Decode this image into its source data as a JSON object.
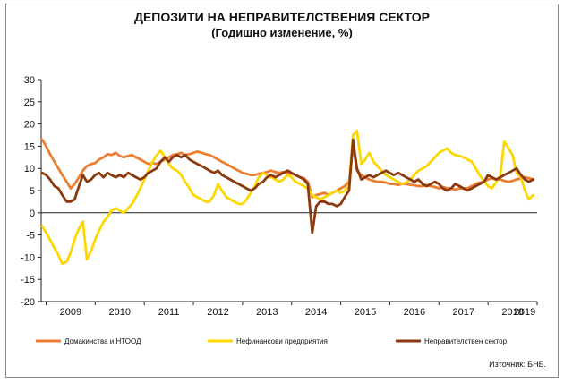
{
  "chart_data": {
    "type": "line",
    "title": "ДЕПОЗИТИ НА НЕПРАВИТЕЛСТВЕНИЯ СЕКТОР",
    "subtitle": "(Годишно изменение, %)",
    "source": "Източник: БНБ.",
    "xlabel": "",
    "ylabel": "",
    "ylim": [
      -20,
      30
    ],
    "yticks": [
      -20,
      -15,
      -10,
      -5,
      0,
      5,
      10,
      15,
      20,
      25,
      30
    ],
    "xlim": [
      2008.9,
      2019.0
    ],
    "xtick_labels": [
      "2009",
      "2010",
      "2011",
      "2012",
      "2013",
      "2014",
      "2015",
      "2016",
      "2017",
      "2018",
      "2019"
    ],
    "legend_position": "bottom",
    "grid": false,
    "series": [
      {
        "name": "Домакинства и НТООД",
        "color": "#ED7D31",
        "x": [
          2008.92,
          2009.0,
          2009.08,
          2009.17,
          2009.25,
          2009.33,
          2009.42,
          2009.5,
          2009.58,
          2009.67,
          2009.75,
          2009.83,
          2009.92,
          2010.0,
          2010.08,
          2010.17,
          2010.25,
          2010.33,
          2010.42,
          2010.5,
          2010.58,
          2010.67,
          2010.75,
          2010.83,
          2010.92,
          2011.0,
          2011.08,
          2011.17,
          2011.25,
          2011.33,
          2011.42,
          2011.5,
          2011.58,
          2011.67,
          2011.75,
          2011.83,
          2011.92,
          2012.0,
          2012.08,
          2012.17,
          2012.25,
          2012.33,
          2012.42,
          2012.5,
          2012.58,
          2012.67,
          2012.75,
          2012.83,
          2012.92,
          2013.0,
          2013.08,
          2013.17,
          2013.25,
          2013.33,
          2013.42,
          2013.5,
          2013.58,
          2013.67,
          2013.75,
          2013.83,
          2013.92,
          2014.0,
          2014.08,
          2014.17,
          2014.25,
          2014.33,
          2014.42,
          2014.5,
          2014.58,
          2014.67,
          2014.75,
          2014.83,
          2014.92,
          2015.0,
          2015.08,
          2015.17,
          2015.25,
          2015.33,
          2015.42,
          2015.5,
          2015.58,
          2015.67,
          2015.75,
          2015.83,
          2015.92,
          2016.0,
          2016.08,
          2016.17,
          2016.25,
          2016.33,
          2016.42,
          2016.5,
          2016.58,
          2016.67,
          2016.75,
          2016.83,
          2016.92,
          2017.0,
          2017.08,
          2017.17,
          2017.25,
          2017.33,
          2017.42,
          2017.5,
          2017.58,
          2017.67,
          2017.75,
          2017.83,
          2017.92,
          2018.0,
          2018.08,
          2018.17,
          2018.25,
          2018.33,
          2018.42,
          2018.5,
          2018.58,
          2018.67,
          2018.75,
          2018.83,
          2018.92
        ],
        "values": [
          16.5,
          15.0,
          13.2,
          11.5,
          10.0,
          8.5,
          7.0,
          5.5,
          6.5,
          8.0,
          9.5,
          10.5,
          11.0,
          11.2,
          12.0,
          12.5,
          13.2,
          13.0,
          13.5,
          12.8,
          12.5,
          12.8,
          13.0,
          12.5,
          12.0,
          11.5,
          11.0,
          11.2,
          11.0,
          11.5,
          12.0,
          12.5,
          13.0,
          13.2,
          13.5,
          13.0,
          13.2,
          13.5,
          13.8,
          13.5,
          13.2,
          13.0,
          12.5,
          12.0,
          11.5,
          11.0,
          10.5,
          10.0,
          9.5,
          9.0,
          8.8,
          8.5,
          8.5,
          8.8,
          9.0,
          9.2,
          9.5,
          9.2,
          9.0,
          9.2,
          9.0,
          8.8,
          8.5,
          8.0,
          7.8,
          7.0,
          3.5,
          4.0,
          4.2,
          4.5,
          4.0,
          4.5,
          5.0,
          5.5,
          6.0,
          7.0,
          15.0,
          9.5,
          8.5,
          8.0,
          7.5,
          7.2,
          7.0,
          7.0,
          6.8,
          6.5,
          6.5,
          6.3,
          6.5,
          6.5,
          6.3,
          6.2,
          6.0,
          6.0,
          6.2,
          6.0,
          5.8,
          5.5,
          5.8,
          5.5,
          5.5,
          5.2,
          5.5,
          5.5,
          5.5,
          6.0,
          6.5,
          6.8,
          7.0,
          7.5,
          7.8,
          7.5,
          7.5,
          7.2,
          7.0,
          7.2,
          7.5,
          7.8,
          8.0,
          7.8,
          7.5
        ]
      },
      {
        "name": "Нефинансови предприятия",
        "color": "#FFD700",
        "x": [
          2008.92,
          2009.0,
          2009.08,
          2009.17,
          2009.25,
          2009.33,
          2009.42,
          2009.5,
          2009.58,
          2009.67,
          2009.75,
          2009.83,
          2009.92,
          2010.0,
          2010.08,
          2010.17,
          2010.25,
          2010.33,
          2010.42,
          2010.5,
          2010.58,
          2010.67,
          2010.75,
          2010.83,
          2010.92,
          2011.0,
          2011.08,
          2011.17,
          2011.25,
          2011.33,
          2011.42,
          2011.5,
          2011.58,
          2011.67,
          2011.75,
          2011.83,
          2011.92,
          2012.0,
          2012.08,
          2012.17,
          2012.25,
          2012.33,
          2012.42,
          2012.5,
          2012.58,
          2012.67,
          2012.75,
          2012.83,
          2012.92,
          2013.0,
          2013.08,
          2013.17,
          2013.25,
          2013.33,
          2013.42,
          2013.5,
          2013.58,
          2013.67,
          2013.75,
          2013.83,
          2013.92,
          2014.0,
          2014.08,
          2014.17,
          2014.25,
          2014.33,
          2014.42,
          2014.5,
          2014.58,
          2014.67,
          2014.75,
          2014.83,
          2014.92,
          2015.0,
          2015.08,
          2015.17,
          2015.25,
          2015.33,
          2015.42,
          2015.5,
          2015.58,
          2015.67,
          2015.75,
          2015.83,
          2015.92,
          2016.0,
          2016.08,
          2016.17,
          2016.25,
          2016.33,
          2016.42,
          2016.5,
          2016.58,
          2016.67,
          2016.75,
          2016.83,
          2016.92,
          2017.0,
          2017.08,
          2017.17,
          2017.25,
          2017.33,
          2017.42,
          2017.5,
          2017.58,
          2017.67,
          2017.75,
          2017.83,
          2017.92,
          2018.0,
          2018.08,
          2018.17,
          2018.25,
          2018.33,
          2018.42,
          2018.5,
          2018.58,
          2018.67,
          2018.75,
          2018.83,
          2018.92
        ],
        "values": [
          -3.0,
          -4.5,
          -6.0,
          -8.0,
          -9.5,
          -11.5,
          -11.0,
          -9.0,
          -6.0,
          -3.5,
          -2.0,
          -10.5,
          -8.5,
          -6.0,
          -4.0,
          -2.0,
          -1.0,
          0.5,
          1.0,
          0.5,
          0.0,
          1.0,
          2.0,
          3.5,
          5.5,
          7.5,
          9.5,
          11.5,
          13.0,
          14.0,
          12.5,
          11.0,
          10.0,
          9.5,
          8.5,
          7.0,
          5.5,
          4.0,
          3.5,
          3.0,
          2.5,
          2.5,
          4.0,
          6.5,
          5.0,
          3.5,
          3.0,
          2.5,
          2.0,
          2.0,
          3.0,
          4.5,
          6.0,
          8.0,
          9.0,
          8.5,
          8.0,
          7.5,
          7.0,
          7.5,
          8.5,
          8.0,
          7.0,
          6.5,
          6.0,
          5.5,
          4.0,
          3.5,
          3.0,
          3.5,
          4.0,
          4.5,
          5.0,
          4.5,
          5.0,
          6.0,
          17.5,
          18.5,
          11.0,
          12.0,
          13.5,
          11.5,
          10.5,
          9.5,
          8.5,
          8.0,
          7.5,
          7.0,
          6.5,
          6.8,
          7.5,
          8.5,
          9.5,
          10.0,
          10.5,
          11.5,
          12.5,
          13.5,
          14.0,
          14.5,
          13.5,
          13.0,
          12.8,
          12.5,
          12.0,
          11.5,
          10.0,
          8.5,
          7.0,
          6.0,
          5.5,
          7.0,
          8.5,
          16.0,
          14.5,
          13.0,
          9.0,
          8.0,
          5.0,
          3.0,
          4.0
        ]
      },
      {
        "name": "Неправителствен сектор",
        "color": "#8B3A0F",
        "x": [
          2008.92,
          2009.0,
          2009.08,
          2009.17,
          2009.25,
          2009.33,
          2009.42,
          2009.5,
          2009.58,
          2009.67,
          2009.75,
          2009.83,
          2009.92,
          2010.0,
          2010.08,
          2010.17,
          2010.25,
          2010.33,
          2010.42,
          2010.5,
          2010.58,
          2010.67,
          2010.75,
          2010.83,
          2010.92,
          2011.0,
          2011.08,
          2011.17,
          2011.25,
          2011.33,
          2011.42,
          2011.5,
          2011.58,
          2011.67,
          2011.75,
          2011.83,
          2011.92,
          2012.0,
          2012.08,
          2012.17,
          2012.25,
          2012.33,
          2012.42,
          2012.5,
          2012.58,
          2012.67,
          2012.75,
          2012.83,
          2012.92,
          2013.0,
          2013.08,
          2013.17,
          2013.25,
          2013.33,
          2013.42,
          2013.5,
          2013.58,
          2013.67,
          2013.75,
          2013.83,
          2013.92,
          2014.0,
          2014.08,
          2014.17,
          2014.25,
          2014.33,
          2014.42,
          2014.5,
          2014.58,
          2014.67,
          2014.75,
          2014.83,
          2014.92,
          2015.0,
          2015.08,
          2015.17,
          2015.25,
          2015.33,
          2015.42,
          2015.5,
          2015.58,
          2015.67,
          2015.75,
          2015.83,
          2015.92,
          2016.0,
          2016.08,
          2016.17,
          2016.25,
          2016.33,
          2016.42,
          2016.5,
          2016.58,
          2016.67,
          2016.75,
          2016.83,
          2016.92,
          2017.0,
          2017.08,
          2017.17,
          2017.25,
          2017.33,
          2017.42,
          2017.5,
          2017.58,
          2017.67,
          2017.75,
          2017.83,
          2017.92,
          2018.0,
          2018.08,
          2018.17,
          2018.25,
          2018.33,
          2018.42,
          2018.5,
          2018.58,
          2018.67,
          2018.75,
          2018.83,
          2018.92
        ],
        "values": [
          9.0,
          8.5,
          7.5,
          6.0,
          5.5,
          4.0,
          2.5,
          2.5,
          3.0,
          6.0,
          8.5,
          7.0,
          7.5,
          8.5,
          9.0,
          8.0,
          9.0,
          8.5,
          8.0,
          8.5,
          8.0,
          9.0,
          8.5,
          8.0,
          7.5,
          8.0,
          9.0,
          9.5,
          10.0,
          11.5,
          12.5,
          11.5,
          12.5,
          13.0,
          12.5,
          13.0,
          12.0,
          11.5,
          11.0,
          10.5,
          10.0,
          9.5,
          9.0,
          9.5,
          8.5,
          8.0,
          7.5,
          7.0,
          6.5,
          6.0,
          5.5,
          5.0,
          5.5,
          6.5,
          7.0,
          8.0,
          8.5,
          8.0,
          8.5,
          9.0,
          9.5,
          9.0,
          8.5,
          8.0,
          7.5,
          6.5,
          -4.5,
          1.5,
          2.5,
          2.5,
          2.0,
          2.0,
          1.5,
          2.0,
          3.5,
          5.0,
          16.5,
          10.0,
          7.5,
          8.0,
          8.5,
          8.0,
          8.5,
          9.0,
          9.5,
          9.0,
          8.5,
          9.0,
          8.5,
          8.0,
          7.5,
          7.0,
          7.5,
          6.5,
          6.0,
          6.5,
          7.0,
          6.5,
          5.5,
          5.0,
          5.5,
          6.5,
          6.0,
          5.5,
          5.0,
          5.5,
          6.0,
          6.5,
          7.0,
          8.5,
          8.0,
          7.5,
          8.0,
          8.5,
          9.0,
          9.5,
          10.0,
          8.5,
          7.5,
          7.0,
          7.5
        ]
      }
    ]
  }
}
